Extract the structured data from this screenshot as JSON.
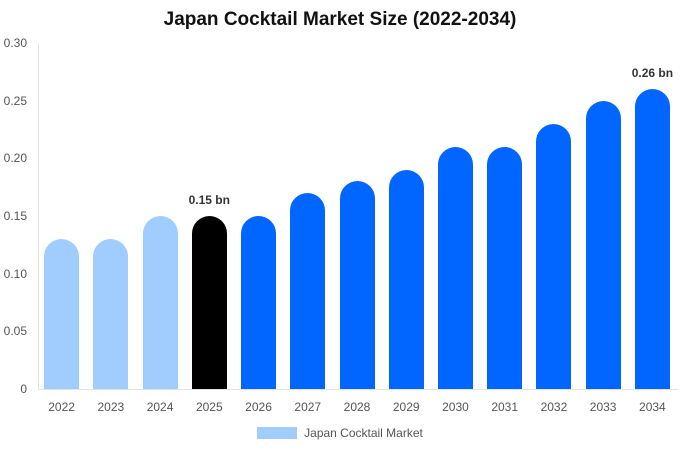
{
  "chart_data": {
    "type": "bar",
    "title": "Japan Cocktail Market Size (2022-2034)",
    "xlabel": "",
    "ylabel": "",
    "ylim": [
      0,
      0.3
    ],
    "yticks": [
      "0",
      "0.05",
      "0.10",
      "0.15",
      "0.20",
      "0.25",
      "0.30"
    ],
    "categories": [
      "2022",
      "2023",
      "2024",
      "2025",
      "2026",
      "2027",
      "2028",
      "2029",
      "2030",
      "2031",
      "2032",
      "2033",
      "2034"
    ],
    "series": [
      {
        "name": "Japan Cocktail Market",
        "values": [
          0.13,
          0.13,
          0.15,
          0.15,
          0.15,
          0.17,
          0.18,
          0.19,
          0.21,
          0.21,
          0.23,
          0.25,
          0.26
        ]
      }
    ],
    "bar_colors": [
      "#a0cdfd",
      "#a0cdfd",
      "#a0cdfd",
      "#000000",
      "#0066ff",
      "#0066ff",
      "#0066ff",
      "#0066ff",
      "#0066ff",
      "#0066ff",
      "#0066ff",
      "#0066ff",
      "#0066ff"
    ],
    "annotations": [
      {
        "category": "2025",
        "text": "0.15 bn"
      },
      {
        "category": "2034",
        "text": "0.26 bn"
      }
    ],
    "legend": {
      "position": "bottom",
      "entries": [
        {
          "label": "Japan Cocktail Market",
          "color": "#a0cdfd"
        }
      ]
    },
    "grid": false
  }
}
